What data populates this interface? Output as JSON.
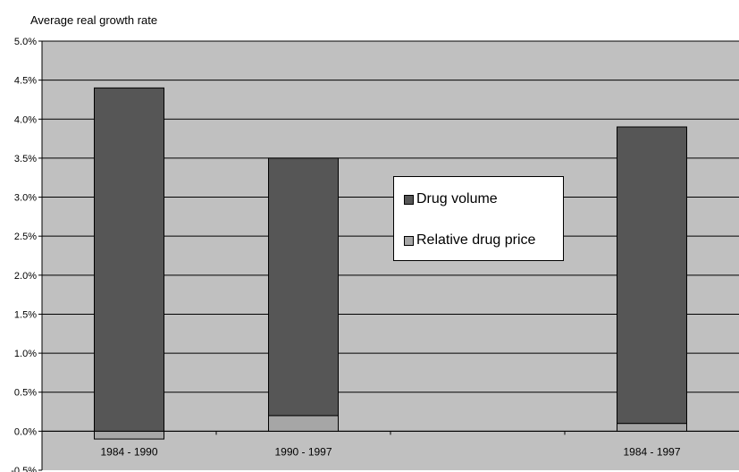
{
  "chart_data": {
    "type": "bar",
    "stacked": true,
    "ylabel": "Average real growth rate",
    "xlabel": "",
    "ylim": [
      -0.5,
      5.0
    ],
    "y_tick_step": 0.5,
    "y_tick_format": "percent_1dp",
    "grid": "horizontal",
    "categories": [
      "1984 - 1990",
      "1990 - 1997",
      "",
      "1984 - 1997"
    ],
    "series": [
      {
        "name": "Relative drug price",
        "color": "#a6a6a6",
        "values": [
          -0.1,
          0.2,
          null,
          0.1
        ]
      },
      {
        "name": "Drug volume",
        "color": "#565656",
        "values": [
          4.4,
          3.3,
          null,
          3.8
        ]
      }
    ],
    "legend_position": "center",
    "plot_background": "#c0c0c0"
  }
}
